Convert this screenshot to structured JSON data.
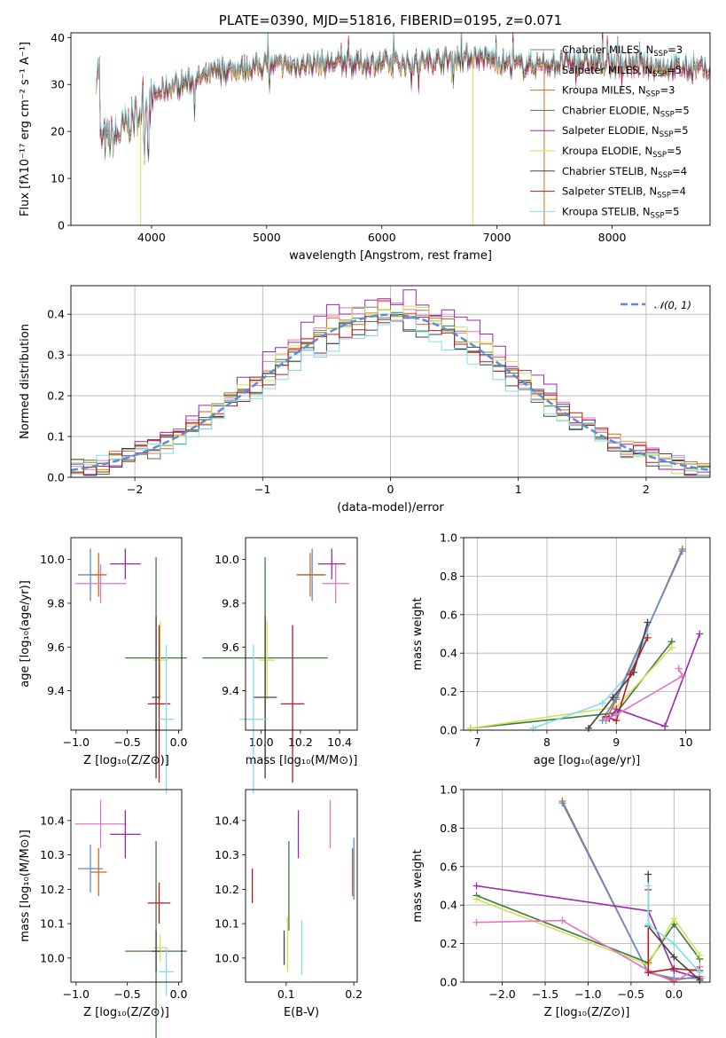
{
  "chart_data": [
    {
      "id": "spectrum",
      "type": "line",
      "title": "PLATE=0390, MJD=51816, FIBERID=0195, z=0.071",
      "xlabel": "wavelength [Angstrom, rest frame]",
      "ylabel": "Flux [fλ10⁻¹⁷ erg cm⁻² s⁻¹ A⁻¹]",
      "xlim": [
        3300,
        8850
      ],
      "ylim": [
        0,
        41
      ],
      "xticks": [
        4000,
        5000,
        6000,
        7000,
        8000
      ],
      "yticks": [
        0,
        10,
        20,
        30,
        40
      ],
      "grid": false,
      "legend_position": "upper-right",
      "continuum": {
        "x": [
          3550,
          3700,
          3850,
          3950,
          4050,
          4200,
          4400,
          4600,
          4800,
          5000,
          5200,
          5400,
          5600,
          5800,
          6000,
          6200,
          6400,
          6600,
          6800,
          7000,
          7200,
          7400,
          7600,
          7800,
          8000,
          8200,
          8400,
          8600,
          8800
        ],
        "y": [
          18,
          19,
          23,
          26,
          28,
          30,
          31,
          33,
          33.5,
          34,
          34,
          34.5,
          34.5,
          34.5,
          34.5,
          34.5,
          35,
          35.5,
          36,
          35,
          34,
          34.5,
          34.5,
          34.5,
          34.5,
          34,
          34,
          33.5,
          33
        ]
      },
      "data_range": [
        3520,
        8850
      ],
      "series": [
        {
          "name": "Chabrier MILES, N_SSP=3",
          "label_main": "Chabrier MILES, N",
          "label_sub": "SSP",
          "label_tail": "=3",
          "color": "#7f7f7f"
        },
        {
          "name": "Salpeter MILES, N_SSP=5",
          "label_main": "Salpeter MILES, N",
          "label_sub": "SSP",
          "label_tail": "=5",
          "color": "#e377c2"
        },
        {
          "name": "Kroupa MILES, N_SSP=3",
          "label_main": "Kroupa MILES, N",
          "label_sub": "SSP",
          "label_tail": "=3",
          "color": "#d2691e"
        },
        {
          "name": "Chabrier ELODIE, N_SSP=5",
          "label_main": "Chabrier ELODIE, N",
          "label_sub": "SSP",
          "label_tail": "=5",
          "color": "#3c7a3c"
        },
        {
          "name": "Salpeter ELODIE, N_SSP=5",
          "label_main": "Salpeter ELODIE, N",
          "label_sub": "SSP",
          "label_tail": "=5",
          "color": "#9c27b0"
        },
        {
          "name": "Kroupa ELODIE, N_SSP=5",
          "label_main": "Kroupa ELODIE, N",
          "label_sub": "SSP",
          "label_tail": "=5",
          "color": "#d4e157"
        },
        {
          "name": "Chabrier STELIB, N_SSP=4",
          "label_main": "Chabrier STELIB, N",
          "label_sub": "SSP",
          "label_tail": "=4",
          "color": "#424242"
        },
        {
          "name": "Salpeter STELIB, N_SSP=4",
          "label_main": "Salpeter STELIB, N",
          "label_sub": "SSP",
          "label_tail": "=4",
          "color": "#b71c1c"
        },
        {
          "name": "Kroupa STELIB, N_SSP=5",
          "label_main": "Kroupa STELIB, N",
          "label_sub": "SSP",
          "label_tail": "=5",
          "color": "#80deea"
        }
      ]
    },
    {
      "id": "residuals",
      "type": "step",
      "xlabel": "(data-model)/error",
      "ylabel": "Normed distribution",
      "xlim": [
        -2.5,
        2.5
      ],
      "ylim": [
        0,
        0.47
      ],
      "xticks": [
        -2,
        -1,
        0,
        1,
        2
      ],
      "yticks": [
        0.0,
        0.1,
        0.2,
        0.3,
        0.4
      ],
      "grid": true,
      "legend_position": "upper-right",
      "gaussian": {
        "label": "𝒩(0, 1)",
        "color": "#5b8bd6"
      },
      "bin_edges_range": [
        -2.5,
        2.5
      ],
      "bin_width": 0.1,
      "histogram_colors": [
        "#7f7f7f",
        "#e377c2",
        "#d2691e",
        "#3c7a3c",
        "#9c27b0",
        "#d4e157",
        "#424242",
        "#b71c1c",
        "#80deea"
      ],
      "histogram_peaks": [
        0.4,
        0.42,
        0.41,
        0.39,
        0.45,
        0.41,
        0.38,
        0.39,
        0.37
      ]
    },
    {
      "id": "age_vs_Z",
      "type": "errorbar",
      "xlabel": "Z [log₁₀(Z/Z⊙)]",
      "ylabel": "age  [log₁₀(age/yr)]",
      "xlim": [
        -1.05,
        0.03
      ],
      "ylim": [
        9.22,
        10.1
      ],
      "xticks": [
        -1.0,
        -0.5,
        0.0
      ],
      "yticks": [
        9.4,
        9.6,
        9.8,
        10.0
      ],
      "points": [
        {
          "x": -0.86,
          "y": 9.93,
          "xerr": 0.12,
          "yerr": 0.12,
          "color": "#5b8bd6"
        },
        {
          "x": -0.78,
          "y": 9.93,
          "xerr": 0.08,
          "yerr": 0.1,
          "color": "#d2691e"
        },
        {
          "x": -0.76,
          "y": 9.89,
          "xerr": 0.25,
          "yerr": 0.09,
          "color": "#e377c2"
        },
        {
          "x": -0.52,
          "y": 9.98,
          "xerr": 0.15,
          "yerr": 0.07,
          "color": "#9c27b0"
        },
        {
          "x": -0.22,
          "y": 9.55,
          "xerr": 0.3,
          "yerr": 0.46,
          "color": "#3c7a3c"
        },
        {
          "x": -0.18,
          "y": 9.54,
          "xerr": 0.07,
          "yerr": 0.18,
          "color": "#d4e157"
        },
        {
          "x": -0.22,
          "y": 9.37,
          "xerr": 0.04,
          "yerr": 0.37,
          "color": "#424242"
        },
        {
          "x": -0.19,
          "y": 9.34,
          "xerr": 0.11,
          "yerr": 0.36,
          "color": "#b71c1c"
        },
        {
          "x": -0.12,
          "y": 9.27,
          "xerr": 0.07,
          "yerr": 0.34,
          "color": "#80deea"
        }
      ]
    },
    {
      "id": "age_vs_mass",
      "type": "errorbar",
      "xlabel": "mass [log₁₀(M/M⊙)]",
      "ylabel": "",
      "xlim": [
        9.92,
        10.49
      ],
      "ylim": [
        9.22,
        10.1
      ],
      "xticks": [
        10.0,
        10.2,
        10.4
      ],
      "yticks": [
        9.4,
        9.6,
        9.8,
        10.0
      ],
      "points": [
        {
          "x": 10.26,
          "y": 9.93,
          "xerr": 0.07,
          "yerr": 0.12,
          "color": "#5b8bd6"
        },
        {
          "x": 10.25,
          "y": 9.93,
          "xerr": 0.07,
          "yerr": 0.1,
          "color": "#d2691e"
        },
        {
          "x": 10.38,
          "y": 9.89,
          "xerr": 0.07,
          "yerr": 0.09,
          "color": "#e377c2"
        },
        {
          "x": 10.36,
          "y": 9.98,
          "xerr": 0.07,
          "yerr": 0.07,
          "color": "#9c27b0"
        },
        {
          "x": 10.02,
          "y": 9.55,
          "xerr": 0.32,
          "yerr": 0.46,
          "color": "#3c7a3c"
        },
        {
          "x": 10.03,
          "y": 9.54,
          "xerr": 0.04,
          "yerr": 0.18,
          "color": "#d4e157"
        },
        {
          "x": 10.02,
          "y": 9.37,
          "xerr": 0.06,
          "yerr": 0.37,
          "color": "#424242"
        },
        {
          "x": 10.16,
          "y": 9.34,
          "xerr": 0.06,
          "yerr": 0.36,
          "color": "#b71c1c"
        },
        {
          "x": 9.96,
          "y": 9.27,
          "xerr": 0.07,
          "yerr": 0.34,
          "color": "#80deea"
        }
      ]
    },
    {
      "id": "weight_vs_age",
      "type": "line",
      "xlabel": "age  [log₁₀(age/yr)]",
      "ylabel": "mass weight",
      "xlim": [
        6.8,
        10.35
      ],
      "ylim": [
        0,
        1.0
      ],
      "xticks": [
        7,
        8,
        9,
        10
      ],
      "yticks": [
        0.0,
        0.2,
        0.4,
        0.6,
        0.8,
        1.0
      ],
      "grid": true,
      "series": [
        {
          "color": "#3c7a3c",
          "x": [
            6.9,
            9.0,
            9.8
          ],
          "y": [
            0.01,
            0.09,
            0.46
          ]
        },
        {
          "color": "#d4e157",
          "x": [
            6.9,
            9.0,
            9.8
          ],
          "y": [
            0.01,
            0.12,
            0.43
          ]
        },
        {
          "color": "#80deea",
          "x": [
            7.8,
            8.8,
            9.2,
            9.3,
            9.45
          ],
          "y": [
            0.01,
            0.14,
            0.3,
            0.38,
            0.5
          ]
        },
        {
          "color": "#d2691e",
          "x": [
            8.85,
            9.0,
            9.95
          ],
          "y": [
            0.05,
            0.16,
            0.94
          ]
        },
        {
          "color": "#5b8bd6",
          "x": [
            8.8,
            9.0,
            9.95
          ],
          "y": [
            0.05,
            0.17,
            0.93
          ]
        },
        {
          "color": "#424242",
          "x": [
            8.6,
            8.95,
            9.25,
            9.45
          ],
          "y": [
            0.01,
            0.17,
            0.3,
            0.56
          ]
        },
        {
          "color": "#b71c1c",
          "x": [
            8.85,
            9.0,
            9.2,
            9.45
          ],
          "y": [
            0.07,
            0.05,
            0.29,
            0.48
          ]
        },
        {
          "color": "#9c27b0",
          "x": [
            8.9,
            9.0,
            9.7,
            10.2
          ],
          "y": [
            0.06,
            0.11,
            0.02,
            0.5
          ]
        },
        {
          "color": "#e377c2",
          "x": [
            8.85,
            9.0,
            9.95,
            9.9
          ],
          "y": [
            0.06,
            0.08,
            0.28,
            0.32
          ]
        }
      ]
    },
    {
      "id": "mass_vs_Z",
      "type": "errorbar",
      "xlabel": "Z [log₁₀(Z/Z⊙)]",
      "ylabel": "mass [log₁₀(M/M⊙)]",
      "xlim": [
        -1.05,
        0.03
      ],
      "ylim": [
        9.93,
        10.49
      ],
      "xticks": [
        -1.0,
        -0.5,
        0.0
      ],
      "yticks": [
        10.0,
        10.1,
        10.2,
        10.3,
        10.4
      ],
      "points": [
        {
          "x": -0.76,
          "y": 10.39,
          "xerr": 0.25,
          "yerr": 0.07,
          "color": "#e377c2"
        },
        {
          "x": -0.52,
          "y": 10.36,
          "xerr": 0.15,
          "yerr": 0.07,
          "color": "#9c27b0"
        },
        {
          "x": -0.86,
          "y": 10.26,
          "xerr": 0.12,
          "yerr": 0.07,
          "color": "#5b8bd6"
        },
        {
          "x": -0.78,
          "y": 10.25,
          "xerr": 0.08,
          "yerr": 0.07,
          "color": "#d2691e"
        },
        {
          "x": -0.22,
          "y": 10.02,
          "xerr": 0.3,
          "yerr": 0.32,
          "color": "#3c7a3c"
        },
        {
          "x": -0.18,
          "y": 10.03,
          "xerr": 0.07,
          "yerr": 0.04,
          "color": "#d4e157"
        },
        {
          "x": -0.22,
          "y": 10.02,
          "xerr": 0.04,
          "yerr": 0.06,
          "color": "#424242"
        },
        {
          "x": -0.19,
          "y": 10.16,
          "xerr": 0.11,
          "yerr": 0.06,
          "color": "#b71c1c"
        },
        {
          "x": -0.12,
          "y": 9.96,
          "xerr": 0.07,
          "yerr": 0.07,
          "color": "#80deea"
        }
      ]
    },
    {
      "id": "mass_vs_ebv",
      "type": "errorbar",
      "xlabel": "E(B-V)",
      "ylabel": "",
      "xlim": [
        0.04,
        0.205
      ],
      "ylim": [
        9.93,
        10.49
      ],
      "xticks": [
        0.1,
        0.2
      ],
      "yticks": [
        10.0,
        10.1,
        10.2,
        10.3,
        10.4
      ],
      "points": [
        {
          "x": 0.165,
          "y": 10.39,
          "xerr": 0.0,
          "yerr": 0.07,
          "color": "#e377c2"
        },
        {
          "x": 0.118,
          "y": 10.36,
          "xerr": 0.0,
          "yerr": 0.07,
          "color": "#9c27b0"
        },
        {
          "x": 0.2,
          "y": 10.26,
          "xerr": 0.0,
          "yerr": 0.09,
          "color": "#5b8bd6"
        },
        {
          "x": 0.198,
          "y": 10.25,
          "xerr": 0.0,
          "yerr": 0.07,
          "color": "#d2691e"
        },
        {
          "x": 0.104,
          "y": 10.21,
          "xerr": 0.0,
          "yerr": 0.13,
          "color": "#3c7a3c"
        },
        {
          "x": 0.102,
          "y": 10.04,
          "xerr": 0.0,
          "yerr": 0.08,
          "color": "#d4e157"
        },
        {
          "x": 0.097,
          "y": 10.03,
          "xerr": 0.0,
          "yerr": 0.05,
          "color": "#424242"
        },
        {
          "x": 0.05,
          "y": 10.21,
          "xerr": 0.0,
          "yerr": 0.05,
          "color": "#b71c1c"
        },
        {
          "x": 0.123,
          "y": 10.03,
          "xerr": 0.0,
          "yerr": 0.08,
          "color": "#80deea"
        }
      ]
    },
    {
      "id": "weight_vs_Z",
      "type": "line",
      "xlabel": "Z [log₁₀(Z/Z⊙)]",
      "ylabel": "mass weight",
      "xlim": [
        -2.45,
        0.42
      ],
      "ylim": [
        0,
        1.0
      ],
      "xticks": [
        -2.0,
        -1.5,
        -1.0,
        -0.5,
        0.0
      ],
      "yticks": [
        0.0,
        0.2,
        0.4,
        0.6,
        0.8,
        1.0
      ],
      "grid": true,
      "series": [
        {
          "color": "#d2691e",
          "x": [
            -1.3,
            -0.3,
            0.0,
            0.3
          ],
          "y": [
            0.94,
            0.05,
            0.01,
            0.03
          ]
        },
        {
          "color": "#5b8bd6",
          "x": [
            -1.3,
            -0.3,
            0.0,
            0.3
          ],
          "y": [
            0.93,
            0.05,
            0.02,
            0.02
          ]
        },
        {
          "color": "#3c7a3c",
          "x": [
            -2.3,
            -0.3,
            0.0,
            0.3
          ],
          "y": [
            0.45,
            0.1,
            0.3,
            0.12
          ]
        },
        {
          "color": "#d4e157",
          "x": [
            -2.3,
            -0.3,
            0.0,
            0.3
          ],
          "y": [
            0.43,
            0.09,
            0.33,
            0.14
          ]
        },
        {
          "color": "#9c27b0",
          "x": [
            -2.3,
            -0.3,
            0.0,
            0.3
          ],
          "y": [
            0.5,
            0.37,
            0.06,
            0.02
          ]
        },
        {
          "color": "#e377c2",
          "x": [
            -2.3,
            -1.3,
            -0.3,
            0.0,
            0.3
          ],
          "y": [
            0.31,
            0.32,
            0.06,
            0.0,
            0.08
          ]
        },
        {
          "color": "#424242",
          "x": [
            -0.3,
            -0.3,
            0.0,
            0.3
          ],
          "y": [
            0.56,
            0.29,
            0.13,
            0.01
          ]
        },
        {
          "color": "#b71c1c",
          "x": [
            -0.3,
            -0.3,
            0.0,
            0.3
          ],
          "y": [
            0.48,
            0.05,
            0.07,
            0.06
          ]
        },
        {
          "color": "#80deea",
          "x": [
            -0.3,
            -0.3,
            0.0,
            0.3
          ],
          "y": [
            0.5,
            0.3,
            0.2,
            0.05
          ]
        }
      ]
    }
  ]
}
